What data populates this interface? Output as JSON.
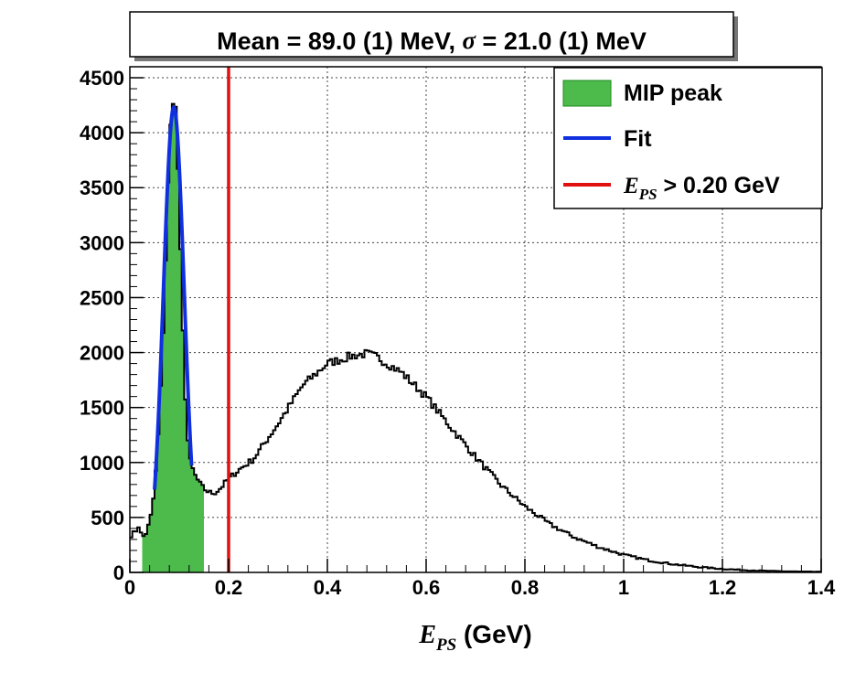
{
  "chart_data": {
    "type": "histogram",
    "title_parts": [
      "Mean = 89.0 (1) MeV, ",
      "σ",
      " = 21.0 (1) MeV"
    ],
    "xlabel_parts": [
      "E",
      "PS",
      " (GeV)"
    ],
    "xlim": [
      0,
      1.4
    ],
    "ylim": [
      0,
      4600
    ],
    "bin_width": 0.005,
    "grid": true,
    "x_ticks": [
      0,
      0.2,
      0.4,
      0.6,
      0.8,
      1,
      1.2,
      1.4
    ],
    "x_tick_labels": [
      "0",
      "0.2",
      "0.4",
      "0.6",
      "0.8",
      "1",
      "1.2",
      "1.4"
    ],
    "y_ticks": [
      0,
      500,
      1000,
      1500,
      2000,
      2500,
      3000,
      3500,
      4000,
      4500
    ],
    "y_tick_labels": [
      "0",
      "500",
      "1000",
      "1500",
      "2000",
      "2500",
      "3000",
      "3500",
      "4000",
      "4500"
    ],
    "histogram_profile": [
      [
        0,
        250
      ],
      [
        0.005,
        420
      ],
      [
        0.01,
        300
      ],
      [
        0.015,
        460
      ],
      [
        0.02,
        380
      ],
      [
        0.025,
        330
      ],
      [
        0.03,
        330
      ],
      [
        0.035,
        380
      ],
      [
        0.04,
        470
      ],
      [
        0.045,
        560
      ],
      [
        0.05,
        780
      ],
      [
        0.055,
        1050
      ],
      [
        0.06,
        1450
      ],
      [
        0.065,
        1900
      ],
      [
        0.07,
        2500
      ],
      [
        0.075,
        3200
      ],
      [
        0.08,
        3850
      ],
      [
        0.085,
        4250
      ],
      [
        0.09,
        4380
      ],
      [
        0.095,
        4050
      ],
      [
        0.1,
        3300
      ],
      [
        0.105,
        2500
      ],
      [
        0.11,
        1850
      ],
      [
        0.115,
        1350
      ],
      [
        0.12,
        1050
      ],
      [
        0.13,
        900
      ],
      [
        0.14,
        820
      ],
      [
        0.15,
        760
      ],
      [
        0.16,
        730
      ],
      [
        0.17,
        720
      ],
      [
        0.18,
        750
      ],
      [
        0.19,
        800
      ],
      [
        0.2,
        850
      ],
      [
        0.22,
        930
      ],
      [
        0.25,
        1030
      ],
      [
        0.3,
        1350
      ],
      [
        0.35,
        1700
      ],
      [
        0.4,
        1900
      ],
      [
        0.45,
        1970
      ],
      [
        0.48,
        1990
      ],
      [
        0.5,
        1960
      ],
      [
        0.55,
        1820
      ],
      [
        0.6,
        1600
      ],
      [
        0.65,
        1320
      ],
      [
        0.7,
        1050
      ],
      [
        0.75,
        800
      ],
      [
        0.8,
        600
      ],
      [
        0.85,
        440
      ],
      [
        0.9,
        320
      ],
      [
        0.95,
        230
      ],
      [
        1.0,
        160
      ],
      [
        1.05,
        110
      ],
      [
        1.1,
        75
      ],
      [
        1.15,
        50
      ],
      [
        1.2,
        32
      ],
      [
        1.25,
        20
      ],
      [
        1.3,
        12
      ],
      [
        1.35,
        8
      ],
      [
        1.4,
        5
      ]
    ],
    "series": [
      {
        "name": "MIP peak",
        "kind": "filled histogram",
        "x_range": [
          0.025,
          0.15
        ],
        "color": "#4cbb4c",
        "edge_color": "#1a8a1a"
      },
      {
        "name": "Fit",
        "kind": "gaussian",
        "mean": 0.089,
        "sigma": 0.021,
        "amplitude": 4230,
        "x_range": [
          0.05,
          0.125
        ],
        "color": "#1030e0"
      },
      {
        "name": "E_PS > 0.20 GeV",
        "kind": "vertical cut line",
        "x": 0.2,
        "color": "#e01010"
      }
    ],
    "legend": {
      "position": "top-right",
      "entries": [
        {
          "label_parts": [
            "MIP peak"
          ],
          "symbol": "box",
          "color": "#4cbb4c"
        },
        {
          "label_parts": [
            "Fit"
          ],
          "symbol": "line",
          "color": "#1030e0"
        },
        {
          "label_parts": [
            "E",
            "PS",
            " > 0.20 GeV"
          ],
          "symbol": "line",
          "color": "#e01010"
        }
      ]
    }
  }
}
